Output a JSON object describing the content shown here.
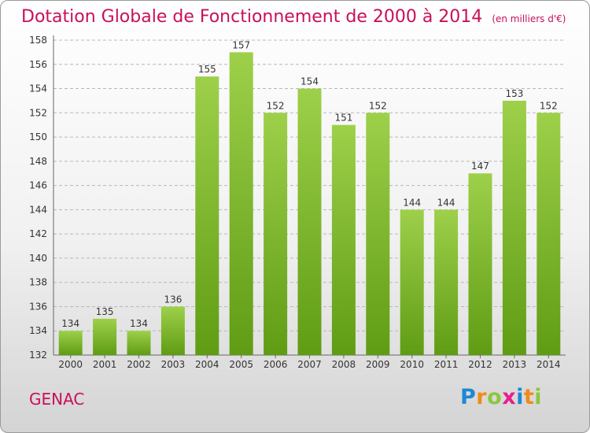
{
  "header": {
    "title": "Dotation Globale de Fonctionnement de 2000 à 2014",
    "subtitle": "(en milliers d'€)"
  },
  "footer": {
    "town": "GENAC",
    "logo": {
      "text": "Proxiti",
      "letters": [
        {
          "ch": "P",
          "color": "#1e88d6"
        },
        {
          "ch": "r",
          "color": "#f08a1c"
        },
        {
          "ch": "o",
          "color": "#8cc63f"
        },
        {
          "ch": "x",
          "color": "#e91e8c"
        },
        {
          "ch": "i",
          "color": "#1e88d6"
        },
        {
          "ch": "t",
          "color": "#f08a1c"
        },
        {
          "ch": "i",
          "color": "#8cc63f"
        }
      ]
    }
  },
  "chart_data": {
    "type": "bar",
    "title": "Dotation Globale de Fonctionnement de 2000 à 2014",
    "subtitle": "(en milliers d'€)",
    "categories": [
      "2000",
      "2001",
      "2002",
      "2003",
      "2004",
      "2005",
      "2006",
      "2007",
      "2008",
      "2009",
      "2010",
      "2011",
      "2012",
      "2013",
      "2014"
    ],
    "values": [
      134,
      135,
      134,
      136,
      155,
      157,
      152,
      154,
      151,
      152,
      144,
      144,
      147,
      153,
      152
    ],
    "ylim": [
      132,
      158
    ],
    "yticks": [
      132,
      134,
      136,
      138,
      140,
      142,
      144,
      146,
      148,
      150,
      152,
      154,
      156,
      158
    ],
    "grid": true,
    "colors": {
      "bar_light": "#9ed04a",
      "bar_dark": "#5f9c14",
      "grid": "#b8b8b8",
      "text": "#333333"
    }
  }
}
